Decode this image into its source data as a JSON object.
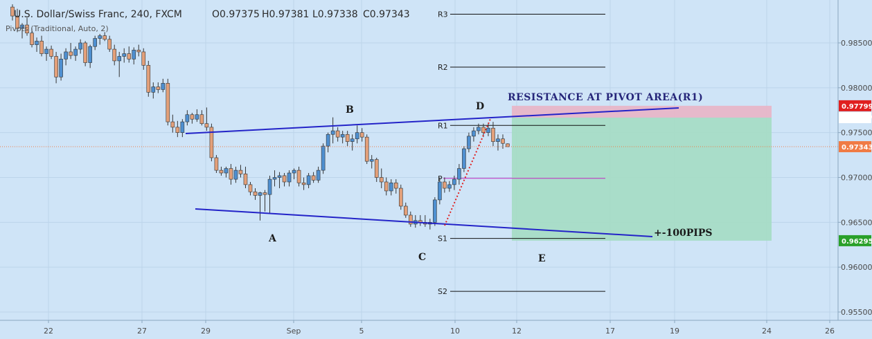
{
  "header": {
    "title": "U.S. Dollar/Swiss Franc, 240, FXCM",
    "ohlc": [
      "O0.97375",
      "H0.97381",
      "L0.97338",
      "C0.97343"
    ],
    "indicator": "Pivots (Traditional, Auto, 2)"
  },
  "colors": {
    "background": "#cfe4f7",
    "bull_body": "#4e8fd0",
    "bear_body": "#e3a07a",
    "trendline": "#2323c8",
    "target_zone": "#a7dcc6",
    "stop_zone": "#e7b6c8",
    "projection": "#e02020",
    "pivot_line": "#111111",
    "pivot_p": "#c02ac0",
    "price_badge": "#f07b45",
    "resistance_badge": "#e02020",
    "target_badge": "#2aa02a"
  },
  "chart_data": {
    "type": "candlestick",
    "symbol": "U.S. Dollar/Swiss Franc",
    "interval": "240",
    "source": "FXCM",
    "x_ticks": [
      "22",
      "27",
      "29",
      "Sep",
      "5",
      "10",
      "12",
      "17",
      "19",
      "24",
      "26"
    ],
    "y_ticks": [
      "0.98500",
      "0.98000",
      "0.97500",
      "0.97000",
      "0.96500",
      "0.96000",
      "0.95500"
    ],
    "ylim": [
      0.9538,
      0.9893
    ],
    "price_labels": [
      {
        "label": "0.97799",
        "value": 0.97799,
        "role": "resistance"
      },
      {
        "label": "0.97667",
        "value": 0.97667,
        "role": "entry"
      },
      {
        "label": "0.97343",
        "value": 0.97343,
        "role": "last"
      },
      {
        "label": "0.96295",
        "value": 0.96295,
        "role": "target"
      }
    ],
    "pivots": [
      {
        "name": "R3",
        "value": 0.9882
      },
      {
        "name": "R2",
        "value": 0.9823
      },
      {
        "name": "R1",
        "value": 0.9758
      },
      {
        "name": "P",
        "value": 0.9699
      },
      {
        "name": "S1",
        "value": 0.9632
      },
      {
        "name": "S2",
        "value": 0.9573
      }
    ],
    "annotations": [
      "RESISTANCE AT PIVOT AREA(R1)",
      "+-100PIPS",
      "A",
      "B",
      "C",
      "D",
      "E"
    ],
    "candles": [
      [
        0.989,
        0.9893,
        0.9875,
        0.988
      ],
      [
        0.988,
        0.9888,
        0.9862,
        0.9866
      ],
      [
        0.9866,
        0.9872,
        0.9855,
        0.987
      ],
      [
        0.987,
        0.9878,
        0.9858,
        0.9861
      ],
      [
        0.9861,
        0.9866,
        0.9845,
        0.9848
      ],
      [
        0.9848,
        0.9856,
        0.984,
        0.9852
      ],
      [
        0.9852,
        0.9858,
        0.9835,
        0.9838
      ],
      [
        0.9838,
        0.9846,
        0.983,
        0.9843
      ],
      [
        0.9843,
        0.9847,
        0.9832,
        0.9835
      ],
      [
        0.9835,
        0.984,
        0.9805,
        0.9812
      ],
      [
        0.9812,
        0.9838,
        0.9808,
        0.9832
      ],
      [
        0.9832,
        0.9844,
        0.9825,
        0.984
      ],
      [
        0.984,
        0.985,
        0.9832,
        0.9836
      ],
      [
        0.9836,
        0.9846,
        0.983,
        0.9843
      ],
      [
        0.9843,
        0.9854,
        0.9838,
        0.985
      ],
      [
        0.985,
        0.9852,
        0.9824,
        0.9828
      ],
      [
        0.9828,
        0.9848,
        0.9822,
        0.9846
      ],
      [
        0.9846,
        0.9858,
        0.9842,
        0.9855
      ],
      [
        0.9855,
        0.986,
        0.9848,
        0.9858
      ],
      [
        0.9858,
        0.9862,
        0.9852,
        0.9854
      ],
      [
        0.9854,
        0.9858,
        0.984,
        0.9843
      ],
      [
        0.9843,
        0.9848,
        0.9825,
        0.983
      ],
      [
        0.983,
        0.984,
        0.9812,
        0.9835
      ],
      [
        0.9835,
        0.9844,
        0.9828,
        0.9838
      ],
      [
        0.9838,
        0.9846,
        0.9828,
        0.9832
      ],
      [
        0.9832,
        0.9845,
        0.9826,
        0.9842
      ],
      [
        0.9842,
        0.9848,
        0.9835,
        0.984
      ],
      [
        0.984,
        0.9844,
        0.982,
        0.9825
      ],
      [
        0.9825,
        0.983,
        0.979,
        0.9795
      ],
      [
        0.9795,
        0.9806,
        0.9788,
        0.9801
      ],
      [
        0.9801,
        0.9806,
        0.9794,
        0.9798
      ],
      [
        0.9798,
        0.981,
        0.9795,
        0.9805
      ],
      [
        0.9805,
        0.981,
        0.9758,
        0.9762
      ],
      [
        0.9762,
        0.977,
        0.975,
        0.9756
      ],
      [
        0.9756,
        0.9763,
        0.9745,
        0.975
      ],
      [
        0.975,
        0.9765,
        0.9745,
        0.9762
      ],
      [
        0.9762,
        0.9775,
        0.9758,
        0.977
      ],
      [
        0.977,
        0.9772,
        0.976,
        0.9765
      ],
      [
        0.9765,
        0.9776,
        0.9762,
        0.977
      ],
      [
        0.977,
        0.9775,
        0.9758,
        0.976
      ],
      [
        0.976,
        0.9778,
        0.9752,
        0.9756
      ],
      [
        0.9756,
        0.976,
        0.9718,
        0.9722
      ],
      [
        0.9722,
        0.9725,
        0.9705,
        0.9708
      ],
      [
        0.9708,
        0.9712,
        0.9702,
        0.9705
      ],
      [
        0.9705,
        0.9712,
        0.97,
        0.971
      ],
      [
        0.971,
        0.9715,
        0.9692,
        0.9698
      ],
      [
        0.9698,
        0.9712,
        0.9694,
        0.9708
      ],
      [
        0.9708,
        0.9714,
        0.97,
        0.9704
      ],
      [
        0.9704,
        0.9712,
        0.9688,
        0.9692
      ],
      [
        0.9692,
        0.9695,
        0.968,
        0.9684
      ],
      [
        0.9684,
        0.9688,
        0.9675,
        0.968
      ],
      [
        0.968,
        0.9684,
        0.9652,
        0.9683
      ],
      [
        0.9683,
        0.9686,
        0.9662,
        0.9681
      ],
      [
        0.9681,
        0.9702,
        0.966,
        0.9698
      ],
      [
        0.9698,
        0.9708,
        0.969,
        0.97
      ],
      [
        0.97,
        0.9706,
        0.9688,
        0.9702
      ],
      [
        0.9702,
        0.9705,
        0.969,
        0.9695
      ],
      [
        0.9695,
        0.9708,
        0.969,
        0.9705
      ],
      [
        0.9705,
        0.971,
        0.9698,
        0.9708
      ],
      [
        0.9708,
        0.9712,
        0.969,
        0.9694
      ],
      [
        0.9694,
        0.97,
        0.9686,
        0.9692
      ],
      [
        0.9692,
        0.9705,
        0.9688,
        0.9702
      ],
      [
        0.9702,
        0.9706,
        0.9694,
        0.9697
      ],
      [
        0.9697,
        0.9712,
        0.9694,
        0.9708
      ],
      [
        0.9708,
        0.9738,
        0.9704,
        0.9735
      ],
      [
        0.9735,
        0.975,
        0.9728,
        0.9748
      ],
      [
        0.9748,
        0.9767,
        0.9738,
        0.9752
      ],
      [
        0.9752,
        0.9756,
        0.974,
        0.9745
      ],
      [
        0.9745,
        0.9752,
        0.9738,
        0.9748
      ],
      [
        0.9748,
        0.9752,
        0.9735,
        0.974
      ],
      [
        0.974,
        0.9748,
        0.973,
        0.9743
      ],
      [
        0.9743,
        0.9758,
        0.9738,
        0.975
      ],
      [
        0.975,
        0.9755,
        0.974,
        0.9745
      ],
      [
        0.9745,
        0.9748,
        0.9715,
        0.9718
      ],
      [
        0.9718,
        0.9725,
        0.971,
        0.972
      ],
      [
        0.972,
        0.9722,
        0.9695,
        0.97
      ],
      [
        0.97,
        0.971,
        0.9688,
        0.9695
      ],
      [
        0.9695,
        0.97,
        0.968,
        0.9685
      ],
      [
        0.9685,
        0.9698,
        0.968,
        0.9694
      ],
      [
        0.9694,
        0.9698,
        0.9682,
        0.9688
      ],
      [
        0.9688,
        0.9692,
        0.9664,
        0.9668
      ],
      [
        0.9668,
        0.9672,
        0.9655,
        0.9658
      ],
      [
        0.9658,
        0.9662,
        0.9645,
        0.9648
      ],
      [
        0.9648,
        0.9658,
        0.9644,
        0.9652
      ],
      [
        0.9652,
        0.9658,
        0.9646,
        0.965
      ],
      [
        0.965,
        0.9658,
        0.9645,
        0.9648
      ],
      [
        0.9648,
        0.9654,
        0.9642,
        0.965
      ],
      [
        0.965,
        0.9678,
        0.9646,
        0.9675
      ],
      [
        0.9675,
        0.97,
        0.967,
        0.9695
      ],
      [
        0.9695,
        0.97,
        0.9683,
        0.9688
      ],
      [
        0.9688,
        0.9696,
        0.9684,
        0.9692
      ],
      [
        0.9692,
        0.9702,
        0.9686,
        0.9698
      ],
      [
        0.9698,
        0.9715,
        0.9692,
        0.971
      ],
      [
        0.971,
        0.9735,
        0.9706,
        0.9732
      ],
      [
        0.9732,
        0.975,
        0.9728,
        0.9746
      ],
      [
        0.9746,
        0.9756,
        0.974,
        0.9752
      ],
      [
        0.9752,
        0.976,
        0.9748,
        0.9756
      ],
      [
        0.9756,
        0.976,
        0.9745,
        0.975
      ],
      [
        0.975,
        0.976,
        0.9746,
        0.9755
      ],
      [
        0.9755,
        0.9762,
        0.9735,
        0.974
      ],
      [
        0.974,
        0.9748,
        0.973,
        0.9743
      ],
      [
        0.9743,
        0.9748,
        0.9732,
        0.9738
      ],
      [
        0.97375,
        0.97381,
        0.97338,
        0.97343
      ]
    ]
  }
}
